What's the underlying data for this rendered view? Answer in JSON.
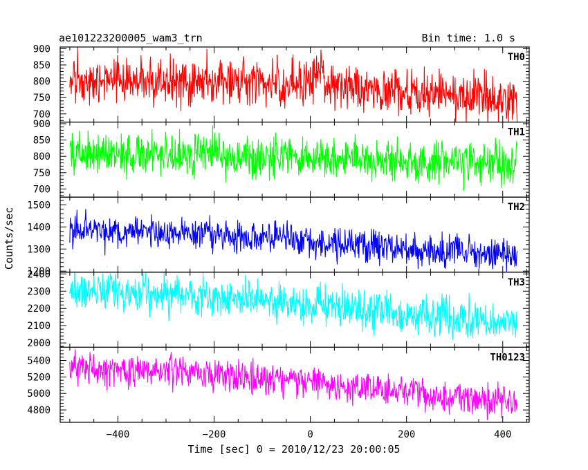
{
  "chart_data": {
    "type": "line",
    "title": "ae101223200005_wam3_trn",
    "bin_time_label": "Bin time: 1.0 s",
    "xlabel": "Time [sec] 0 = 2010/12/23 20:00:05",
    "ylabel": "Counts/sec",
    "xlim": [
      -520,
      455
    ],
    "x_ticks": [
      -400,
      -200,
      0,
      200,
      400
    ],
    "x_tick_labels": [
      "−400",
      "−200",
      "0",
      "200",
      "400"
    ],
    "x_range_of_data": [
      -500,
      430
    ],
    "bin_time": 1.0,
    "grid": false,
    "panels": [
      {
        "name": "TH0",
        "color": "#ff0000",
        "ylim": [
          675,
          905
        ],
        "y_ticks": [
          700,
          750,
          800,
          850,
          900
        ],
        "trend": [
          [
            -500,
            800
          ],
          [
            -300,
            798
          ],
          [
            -100,
            795
          ],
          [
            0,
            800
          ],
          [
            10,
            820
          ],
          [
            25,
            835
          ],
          [
            30,
            785
          ],
          [
            200,
            765
          ],
          [
            430,
            745
          ]
        ],
        "noise_sigma": 35
      },
      {
        "name": "TH1",
        "color": "#00ff00",
        "ylim": [
          675,
          905
        ],
        "y_ticks": [
          700,
          750,
          800,
          850,
          900
        ],
        "trend": [
          [
            -500,
            810
          ],
          [
            -200,
            805
          ],
          [
            0,
            795
          ],
          [
            200,
            785
          ],
          [
            430,
            775
          ]
        ],
        "noise_sigma": 32
      },
      {
        "name": "TH2",
        "color": "#0000ff",
        "ylim": [
          1195,
          1535
        ],
        "y_ticks": [
          1200,
          1300,
          1400,
          1500
        ],
        "trend": [
          [
            -500,
            1390
          ],
          [
            -200,
            1365
          ],
          [
            0,
            1335
          ],
          [
            200,
            1300
          ],
          [
            430,
            1270
          ]
        ],
        "noise_sigma": 38
      },
      {
        "name": "TH3",
        "color": "#00ffff",
        "ylim": [
          1975,
          2410
        ],
        "y_ticks": [
          2000,
          2100,
          2200,
          2300,
          2400
        ],
        "trend": [
          [
            -500,
            2310
          ],
          [
            -200,
            2270
          ],
          [
            0,
            2215
          ],
          [
            200,
            2160
          ],
          [
            430,
            2110
          ]
        ],
        "noise_sigma": 55
      },
      {
        "name": "TH0123",
        "color": "#ff00ff",
        "ylim": [
          4650,
          5560
        ],
        "y_ticks": [
          4800,
          5000,
          5200,
          5400
        ],
        "trend": [
          [
            -500,
            5310
          ],
          [
            -200,
            5240
          ],
          [
            0,
            5150
          ],
          [
            20,
            5190
          ],
          [
            30,
            5100
          ],
          [
            200,
            5010
          ],
          [
            430,
            4890
          ]
        ],
        "noise_sigma": 95
      }
    ]
  }
}
